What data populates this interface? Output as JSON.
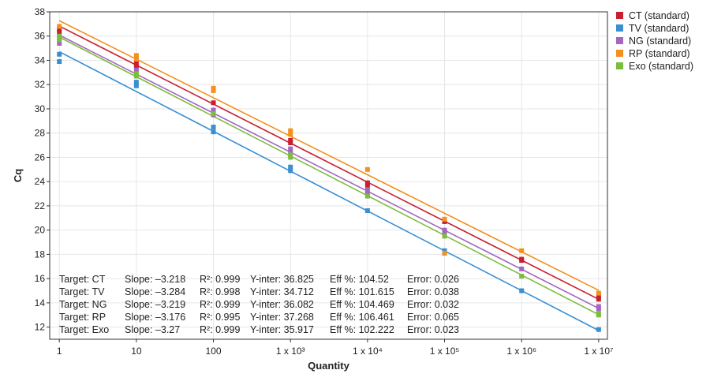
{
  "chart_data": {
    "type": "scatter",
    "xlabel": "Quantity",
    "ylabel": "Cq",
    "x_scale": "log",
    "xlim": [
      0.75,
      13000000
    ],
    "ylim": [
      11,
      38
    ],
    "grid": true,
    "legend_position": "top-right",
    "x_ticks": [
      {
        "value": 1,
        "label": "1"
      },
      {
        "value": 10,
        "label": "10"
      },
      {
        "value": 100,
        "label": "100"
      },
      {
        "value": 1000,
        "label": "1 x 10³"
      },
      {
        "value": 10000,
        "label": "1 x 10⁴"
      },
      {
        "value": 100000,
        "label": "1 x 10⁵"
      },
      {
        "value": 1000000,
        "label": "1 x 10⁶"
      },
      {
        "value": 10000000,
        "label": "1 x 10⁷"
      }
    ],
    "y_ticks": [
      12,
      14,
      16,
      18,
      20,
      22,
      24,
      26,
      28,
      30,
      32,
      34,
      36,
      38
    ],
    "series": [
      {
        "name": "CT (standard)",
        "color": "#c8202f",
        "slope": -3.218,
        "intercept": 36.825,
        "points": [
          [
            1,
            36.6
          ],
          [
            1,
            36.3
          ],
          [
            10,
            33.8
          ],
          [
            10,
            33.5
          ],
          [
            100,
            30.5
          ],
          [
            1000,
            27.4
          ],
          [
            1000,
            27.2
          ],
          [
            10000,
            23.9
          ],
          [
            10000,
            23.7
          ],
          [
            100000,
            20.7
          ],
          [
            1000000,
            17.6
          ],
          [
            1000000,
            17.5
          ],
          [
            10000000,
            14.6
          ],
          [
            10000000,
            14.3
          ]
        ]
      },
      {
        "name": "TV (standard)",
        "color": "#3a8fd1",
        "slope": -3.284,
        "intercept": 34.712,
        "points": [
          [
            1,
            34.5
          ],
          [
            1,
            33.9
          ],
          [
            10,
            32.2
          ],
          [
            10,
            31.9
          ],
          [
            100,
            28.5
          ],
          [
            100,
            28.1
          ],
          [
            1000,
            25.2
          ],
          [
            1000,
            24.9
          ],
          [
            10000,
            21.6
          ],
          [
            100000,
            18.3
          ],
          [
            100000,
            18.1
          ],
          [
            1000000,
            15.0
          ],
          [
            10000000,
            11.8
          ]
        ]
      },
      {
        "name": "NG (standard)",
        "color": "#a467c0",
        "slope": -3.219,
        "intercept": 36.082,
        "points": [
          [
            1,
            35.8
          ],
          [
            1,
            35.4
          ],
          [
            10,
            33.2
          ],
          [
            100,
            29.9
          ],
          [
            100,
            29.5
          ],
          [
            1000,
            26.7
          ],
          [
            1000,
            26.4
          ],
          [
            10000,
            23.3
          ],
          [
            10000,
            23.0
          ],
          [
            100000,
            20.0
          ],
          [
            100000,
            19.8
          ],
          [
            1000000,
            16.8
          ],
          [
            10000000,
            13.7
          ],
          [
            10000000,
            13.5
          ]
        ]
      },
      {
        "name": "RP (standard)",
        "color": "#f3901e",
        "slope": -3.176,
        "intercept": 37.268,
        "points": [
          [
            1,
            36.8
          ],
          [
            10,
            34.4
          ],
          [
            10,
            34.1
          ],
          [
            100,
            31.7
          ],
          [
            100,
            31.5
          ],
          [
            1000,
            28.2
          ],
          [
            1000,
            27.9
          ],
          [
            10000,
            25.0
          ],
          [
            100000,
            20.9
          ],
          [
            100000,
            18.1
          ],
          [
            1000000,
            18.3
          ],
          [
            10000000,
            14.8
          ]
        ]
      },
      {
        "name": "Exo (standard)",
        "color": "#7cbd3d",
        "slope": -3.27,
        "intercept": 35.917,
        "points": [
          [
            1,
            36.0
          ],
          [
            1,
            35.7
          ],
          [
            10,
            32.9
          ],
          [
            10,
            32.7
          ],
          [
            100,
            29.6
          ],
          [
            1000,
            26.2
          ],
          [
            1000,
            26.0
          ],
          [
            10000,
            22.8
          ],
          [
            100000,
            19.5
          ],
          [
            1000000,
            16.2
          ],
          [
            10000000,
            13.1
          ],
          [
            10000000,
            13.0
          ]
        ]
      }
    ],
    "stats": [
      {
        "target": "Target: CT",
        "slope": "Slope: –3.218",
        "r2": "R²: 0.999",
        "yinter": "Y-inter: 36.825",
        "eff": "Eff %: 104.52",
        "error": "Error: 0.026"
      },
      {
        "target": "Target: TV",
        "slope": "Slope: –3.284",
        "r2": "R²: 0.998",
        "yinter": "Y-inter: 34.712",
        "eff": "Eff %: 101.615",
        "error": "Error: 0.038"
      },
      {
        "target": "Target: NG",
        "slope": "Slope: –3.219",
        "r2": "R²: 0.999",
        "yinter": "Y-inter: 36.082",
        "eff": "Eff %: 104.469",
        "error": "Error: 0.032"
      },
      {
        "target": "Target: RP",
        "slope": "Slope: –3.176",
        "r2": "R²: 0.995",
        "yinter": "Y-inter: 37.268",
        "eff": "Eff %: 106.461",
        "error": "Error: 0.065"
      },
      {
        "target": "Target: Exo",
        "slope": "Slope: –3.27",
        "r2": "R²: 0.999",
        "yinter": "Y-inter: 35.917",
        "eff": "Eff %: 102.222",
        "error": "Error: 0.023"
      }
    ]
  }
}
